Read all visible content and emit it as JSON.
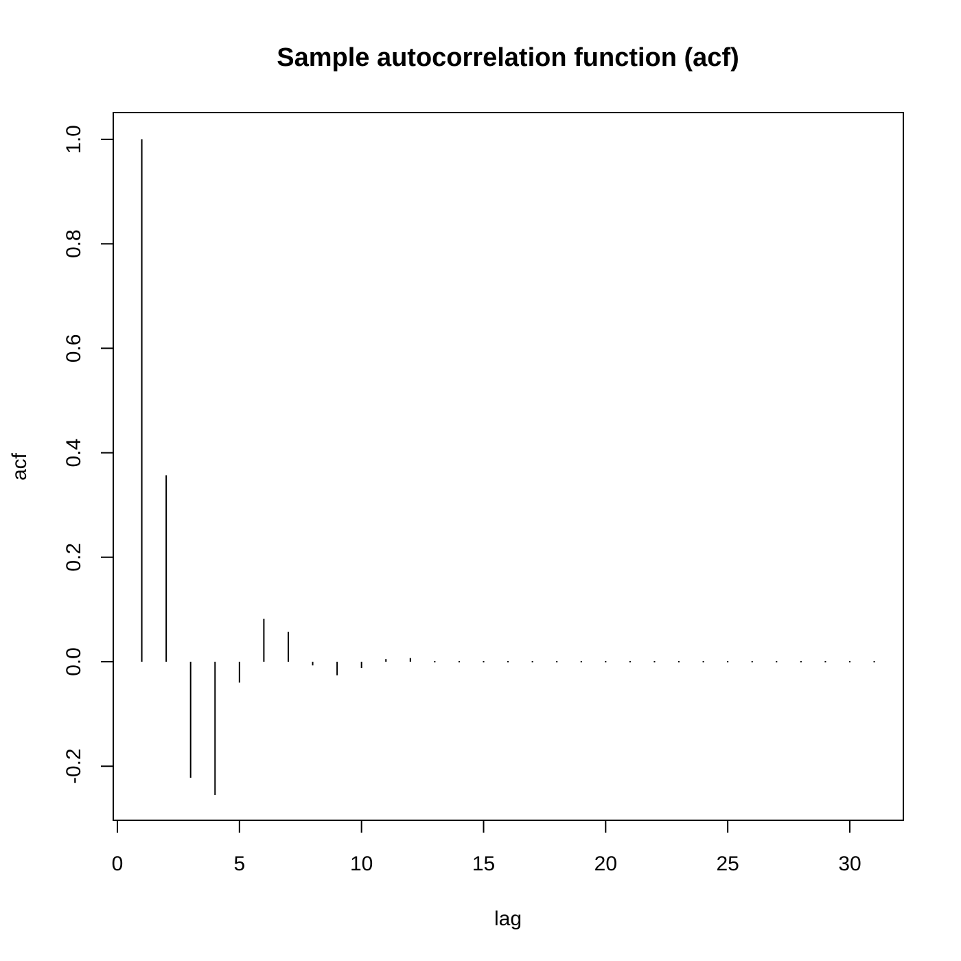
{
  "chart_data": {
    "type": "bar",
    "style": "vertical-lines (R acf plot, type='h')",
    "title": "Sample autocorrelation function (acf)",
    "xlabel": "lag",
    "ylabel": "acf",
    "xlim": [
      0,
      32
    ],
    "ylim": [
      -0.3,
      1.05
    ],
    "xticks": [
      0,
      5,
      10,
      15,
      20,
      25,
      30
    ],
    "xtick_labels": [
      "0",
      "5",
      "10",
      "15",
      "20",
      "25",
      "30"
    ],
    "yticks": [
      -0.2,
      0.0,
      0.2,
      0.4,
      0.6,
      0.8,
      1.0
    ],
    "ytick_labels": [
      "-0.2",
      "0.0",
      "0.2",
      "0.4",
      "0.6",
      "0.8",
      "1.0"
    ],
    "grid": false,
    "legend": "none",
    "x": [
      1,
      2,
      3,
      4,
      5,
      6,
      7,
      8,
      9,
      10,
      11,
      12,
      13,
      14,
      15,
      16,
      17,
      18,
      19,
      20,
      21,
      22,
      23,
      24,
      25,
      26,
      27,
      28,
      29,
      30,
      31
    ],
    "values": [
      1.0,
      0.357,
      -0.222,
      -0.255,
      -0.04,
      0.082,
      0.057,
      -0.007,
      -0.026,
      -0.012,
      0.005,
      0.007,
      0.001,
      -0.002,
      -0.001,
      0.0,
      0.0,
      0.0,
      0.0,
      0.0,
      0.0,
      0.0,
      0.0,
      0.0,
      0.0,
      0.0,
      0.0,
      0.0,
      0.0,
      0.0,
      0.0
    ],
    "colors": {
      "line": "#000000",
      "frame": "#000000",
      "background": "#ffffff"
    }
  }
}
